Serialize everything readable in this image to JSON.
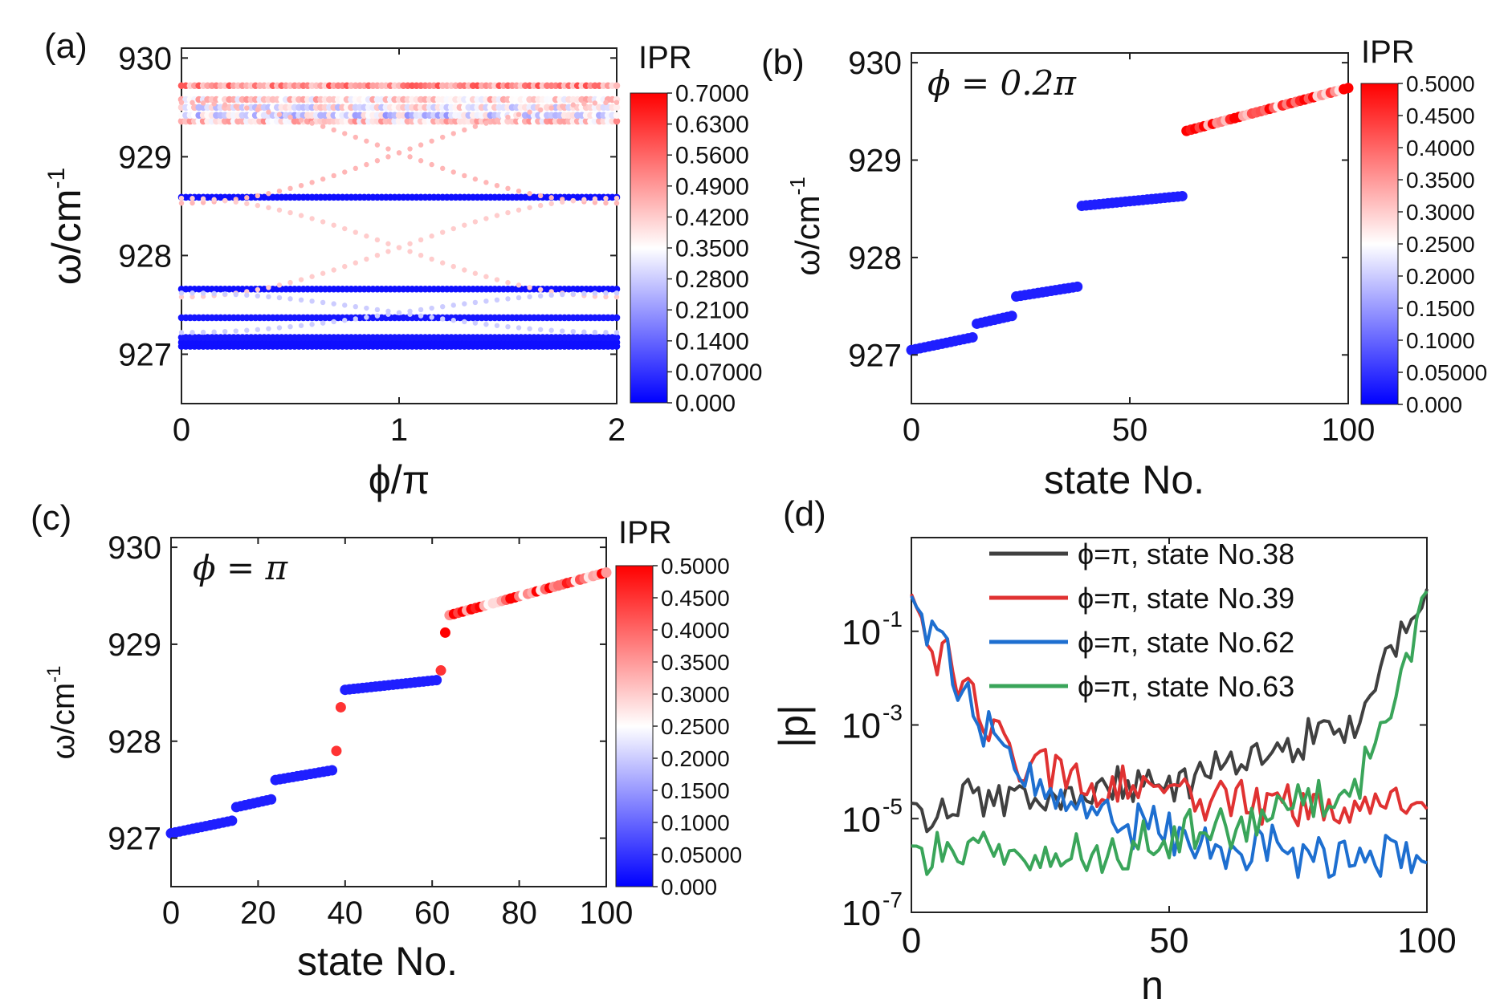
{
  "chart_data": [
    {
      "panel": "(a)",
      "type": "scatter",
      "xlabel": "ϕ/π",
      "ylabel": "ω/cm",
      "ylabel_sup": "-1",
      "xlim": [
        0,
        2
      ],
      "ylim": [
        926.5,
        930.1
      ],
      "xticks": [
        "0",
        "1",
        "2"
      ],
      "yticks": [
        "927",
        "928",
        "929",
        "930"
      ],
      "colorbar_title": "IPR",
      "colorbar_ticks": [
        "0.7000",
        "0.6300",
        "0.5600",
        "0.4900",
        "0.4200",
        "0.3500",
        "0.2800",
        "0.2100",
        "0.1400",
        "0.07000",
        "0.000"
      ],
      "flat_bands": [
        {
          "omega": 927.08,
          "ipr": 0.02
        },
        {
          "omega": 927.12,
          "ipr": 0.02
        },
        {
          "omega": 927.17,
          "ipr": 0.03
        },
        {
          "omega": 927.37,
          "ipr": 0.03
        },
        {
          "omega": 927.66,
          "ipr": 0.02
        },
        {
          "omega": 928.59,
          "ipr": 0.02
        },
        {
          "omega": 929.36,
          "ipr": 0.42
        },
        {
          "omega": 929.42,
          "ipr": 0.3
        },
        {
          "omega": 929.5,
          "ipr": 0.35
        },
        {
          "omega": 929.58,
          "ipr": 0.4
        },
        {
          "omega": 929.72,
          "ipr": 0.5
        }
      ],
      "edge_states": [
        {
          "name": "edge-1",
          "omega_at_0": 929.55,
          "omega_at_2": 928.53,
          "ipr": 0.45
        },
        {
          "name": "edge-2",
          "omega_at_0": 928.53,
          "omega_at_2": 929.55,
          "ipr": 0.45
        },
        {
          "name": "edge-3",
          "omega_at_0": 927.58,
          "omega_at_2": 928.58,
          "ipr": 0.42
        },
        {
          "name": "edge-4",
          "omega_at_0": 928.58,
          "omega_at_2": 927.58,
          "ipr": 0.42
        },
        {
          "name": "edge-5",
          "omega_at_0": 927.62,
          "omega_at_2": 927.22,
          "ipr": 0.28
        },
        {
          "name": "edge-6",
          "omega_at_0": 927.22,
          "omega_at_2": 927.62,
          "ipr": 0.28
        }
      ]
    },
    {
      "panel": "(b)",
      "type": "scatter",
      "annotation": "ϕ = 0.2π",
      "xlabel": "state No.",
      "ylabel": "ω/cm",
      "ylabel_sup": "-1",
      "xlim": [
        0,
        100
      ],
      "ylim": [
        926.5,
        930.1
      ],
      "xticks": [
        "0",
        "50",
        "100"
      ],
      "yticks": [
        "927",
        "928",
        "929",
        "930"
      ],
      "colorbar_title": "IPR",
      "colorbar_ticks": [
        "0.5000",
        "0.4500",
        "0.4000",
        "0.3500",
        "0.3000",
        "0.2500",
        "0.2000",
        "0.1500",
        "0.1000",
        "0.05000",
        "0.000"
      ],
      "segments": [
        {
          "from": 0,
          "to": 14,
          "omega_start": 927.05,
          "omega_end": 927.18,
          "ipr": 0.03
        },
        {
          "from": 15,
          "to": 23,
          "omega_start": 927.32,
          "omega_end": 927.4,
          "ipr": 0.03
        },
        {
          "from": 24,
          "to": 38,
          "omega_start": 927.6,
          "omega_end": 927.7,
          "ipr": 0.03
        },
        {
          "from": 39,
          "to": 62,
          "omega_start": 928.53,
          "omega_end": 928.63,
          "ipr": 0.03
        },
        {
          "from": 63,
          "to": 100,
          "omega_start": 929.3,
          "omega_end": 929.74,
          "ipr": 0.4
        }
      ]
    },
    {
      "panel": "(c)",
      "type": "scatter",
      "annotation": "ϕ = π",
      "xlabel": "state No.",
      "ylabel": "ω/cm",
      "ylabel_sup": "-1",
      "xlim": [
        0,
        100
      ],
      "ylim": [
        926.5,
        930.1
      ],
      "xticks": [
        "0",
        "20",
        "40",
        "60",
        "80",
        "100"
      ],
      "yticks": [
        "927",
        "928",
        "929",
        "930"
      ],
      "colorbar_title": "IPR",
      "colorbar_ticks": [
        "0.5000",
        "0.4500",
        "0.4000",
        "0.3500",
        "0.3000",
        "0.2500",
        "0.2000",
        "0.1500",
        "0.1000",
        "0.05000",
        "0.000"
      ],
      "segments": [
        {
          "from": 0,
          "to": 14,
          "omega_start": 927.05,
          "omega_end": 927.18,
          "ipr": 0.03
        },
        {
          "from": 15,
          "to": 23,
          "omega_start": 927.32,
          "omega_end": 927.4,
          "ipr": 0.03
        },
        {
          "from": 24,
          "to": 37,
          "omega_start": 927.6,
          "omega_end": 927.7,
          "ipr": 0.03
        },
        {
          "from": 40,
          "to": 61,
          "omega_start": 928.53,
          "omega_end": 928.63,
          "ipr": 0.03
        },
        {
          "from": 64,
          "to": 100,
          "omega_start": 929.3,
          "omega_end": 929.74,
          "ipr": 0.4
        }
      ],
      "isolated_states": [
        {
          "state": 38,
          "omega": 927.9,
          "ipr": 0.45
        },
        {
          "state": 39,
          "omega": 928.35,
          "ipr": 0.45
        },
        {
          "state": 62,
          "omega": 928.73,
          "ipr": 0.45
        },
        {
          "state": 63,
          "omega": 929.12,
          "ipr": 0.5
        }
      ]
    },
    {
      "panel": "(d)",
      "type": "line",
      "xlabel": "n",
      "ylabel": "|p|",
      "yscale": "log",
      "xlim": [
        0,
        100
      ],
      "ylim_log10": [
        -7,
        1
      ],
      "xticks": [
        "0",
        "50",
        "100"
      ],
      "yticks": [
        {
          "base": "10",
          "exp": "-1"
        },
        {
          "base": "10",
          "exp": "-3"
        },
        {
          "base": "10",
          "exp": "-5"
        },
        {
          "base": "10",
          "exp": "-7"
        }
      ],
      "series": [
        {
          "name": "ϕ=π, state No.38",
          "color": "#404040",
          "log10_envelope": [
            [
              0,
              -4.8
            ],
            [
              10,
              -4.6
            ],
            [
              30,
              -4.6
            ],
            [
              50,
              -4.2
            ],
            [
              70,
              -3.5
            ],
            [
              85,
              -3.0
            ],
            [
              95,
              -1.2
            ],
            [
              100,
              -0.2
            ]
          ]
        },
        {
          "name": "ϕ=π, state No.39",
          "color": "#e03232",
          "log10_envelope": [
            [
              0,
              -0.15
            ],
            [
              4,
              -1.2
            ],
            [
              10,
              -2.2
            ],
            [
              16,
              -3.2
            ],
            [
              22,
              -3.8
            ],
            [
              35,
              -4.2
            ],
            [
              55,
              -4.5
            ],
            [
              75,
              -4.8
            ],
            [
              100,
              -4.7
            ]
          ]
        },
        {
          "name": "ϕ=π, state No.62",
          "color": "#1e6fd0",
          "log10_envelope": [
            [
              0,
              -0.15
            ],
            [
              5,
              -1.3
            ],
            [
              10,
              -2.2
            ],
            [
              16,
              -3.3
            ],
            [
              22,
              -4.2
            ],
            [
              35,
              -4.8
            ],
            [
              55,
              -5.5
            ],
            [
              80,
              -5.8
            ],
            [
              100,
              -5.8
            ]
          ]
        },
        {
          "name": "ϕ=π, state No.63",
          "color": "#3aa55a",
          "log10_envelope": [
            [
              0,
              -5.6
            ],
            [
              20,
              -5.8
            ],
            [
              40,
              -5.6
            ],
            [
              60,
              -5.2
            ],
            [
              75,
              -4.8
            ],
            [
              85,
              -4.4
            ],
            [
              90,
              -3.6
            ],
            [
              95,
              -2.0
            ],
            [
              100,
              -0.1
            ]
          ]
        }
      ]
    }
  ],
  "panel_labels": {
    "a": "(a)",
    "b": "(b)",
    "c": "(c)",
    "d": "(d)"
  }
}
